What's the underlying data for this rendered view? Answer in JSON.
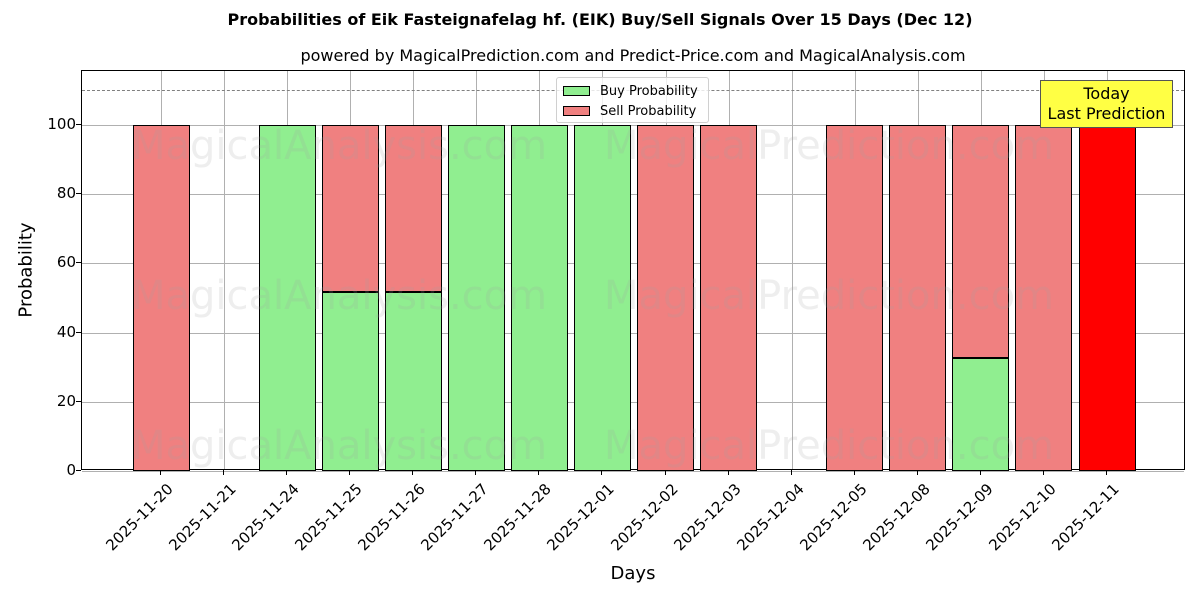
{
  "title": "Probabilities of Eik Fasteignafelag hf. (EIK) Buy/Sell Signals Over 15 Days (Dec 12)",
  "subtitle": "powered by MagicalPrediction.com and Predict-Price.com and MagicalAnalysis.com",
  "legend": {
    "buy": "Buy Probability",
    "sell": "Sell Probability"
  },
  "annotation": {
    "line1": "Today",
    "line2": "Last Prediction"
  },
  "watermarks": [
    "MagicalAnalysis.com",
    "MagicalPrediction.com"
  ],
  "colors": {
    "buy": "#90ee90",
    "sell": "#f08080",
    "today_sell": "#ff0000",
    "annotation_bg": "#ffff44"
  },
  "chart_data": {
    "type": "bar",
    "stacked": true,
    "title": "Probabilities of Eik Fasteignafelag hf. (EIK) Buy/Sell Signals Over 15 Days (Dec 12)",
    "subtitle": "powered by MagicalPrediction.com and Predict-Price.com and MagicalAnalysis.com",
    "xlabel": "Days",
    "ylabel": "Probability",
    "ylim": [
      0,
      115
    ],
    "yticks": [
      0,
      20,
      40,
      60,
      80,
      100
    ],
    "grid": true,
    "legend_position": "upper center",
    "reference_line": {
      "y": 110,
      "style": "dashed"
    },
    "categories": [
      "2025-11-20",
      "2025-11-21",
      "2025-11-24",
      "2025-11-25",
      "2025-11-26",
      "2025-11-27",
      "2025-11-28",
      "2025-12-01",
      "2025-12-02",
      "2025-12-03",
      "2025-12-04",
      "2025-12-05",
      "2025-12-08",
      "2025-12-09",
      "2025-12-10",
      "2025-12-11"
    ],
    "series": [
      {
        "name": "Buy Probability",
        "values": [
          0,
          0,
          100,
          51.7,
          51.7,
          100,
          100,
          100,
          0,
          0,
          0,
          0,
          0,
          32.7,
          0,
          0
        ]
      },
      {
        "name": "Sell Probability",
        "values": [
          100,
          0,
          0,
          48.3,
          48.3,
          0,
          0,
          0,
          100,
          100,
          0,
          100,
          100,
          67.3,
          100,
          100
        ]
      }
    ],
    "annotations": [
      "Today\nLast Prediction"
    ]
  }
}
